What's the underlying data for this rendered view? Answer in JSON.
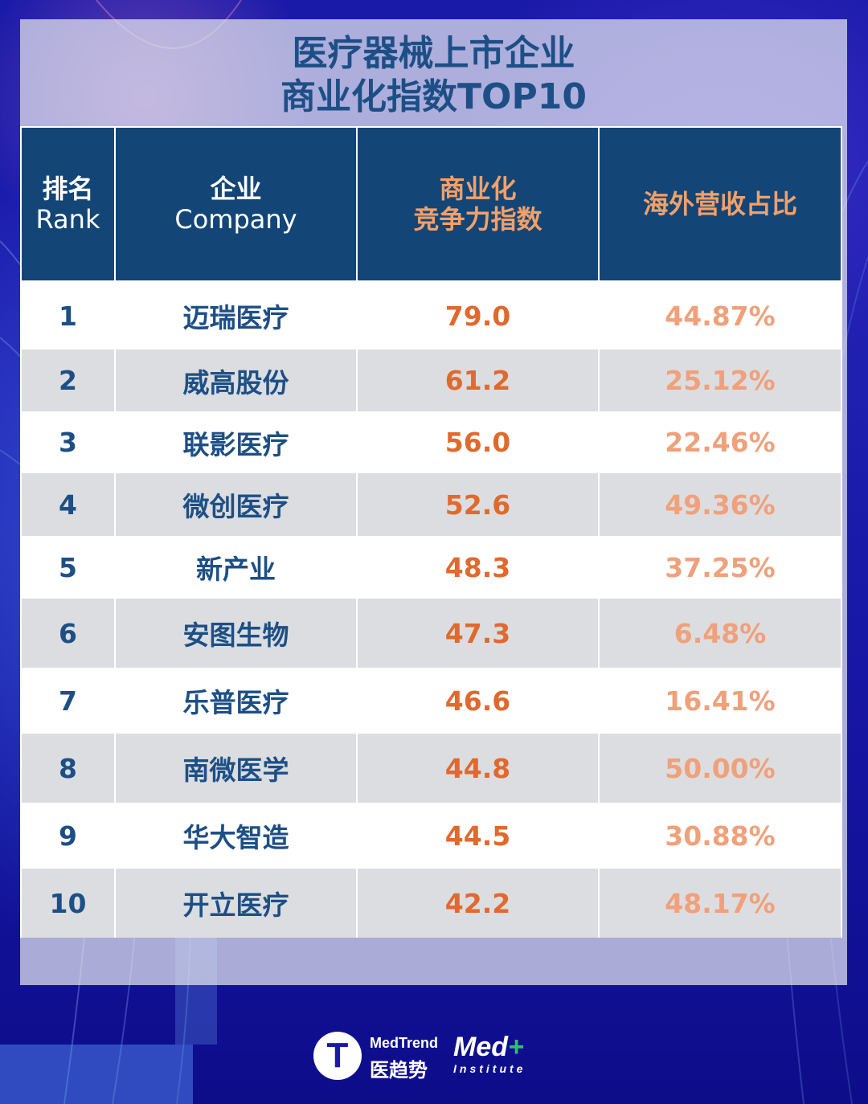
{
  "title": {
    "line1": "医疗器械上市企业",
    "line2": "商业化指数TOP10"
  },
  "table": {
    "headers": {
      "rank_cn": "排名",
      "rank_en": "Rank",
      "company_cn": "企业",
      "company_en": "Company",
      "index_line1": "商业化",
      "index_line2": "竞争力指数",
      "overseas": "海外营收占比"
    },
    "rows": [
      {
        "rank": "1",
        "company": "迈瑞医疗",
        "index": "79.0",
        "overseas": "44.87%"
      },
      {
        "rank": "2",
        "company": "威高股份",
        "index": "61.2",
        "overseas": "25.12%"
      },
      {
        "rank": "3",
        "company": "联影医疗",
        "index": "56.0",
        "overseas": "22.46%"
      },
      {
        "rank": "4",
        "company": "微创医疗",
        "index": "52.6",
        "overseas": "49.36%"
      },
      {
        "rank": "5",
        "company": "新产业",
        "index": "48.3",
        "overseas": "37.25%"
      },
      {
        "rank": "6",
        "company": "安图生物",
        "index": "47.3",
        "overseas": "6.48%"
      },
      {
        "rank": "7",
        "company": "乐普医疗",
        "index": "46.6",
        "overseas": "16.41%"
      },
      {
        "rank": "8",
        "company": "南微医学",
        "index": "44.8",
        "overseas": "50.00%"
      },
      {
        "rank": "9",
        "company": "华大智造",
        "index": "44.5",
        "overseas": "30.88%"
      },
      {
        "rank": "10",
        "company": "开立医疗",
        "index": "42.2",
        "overseas": "48.17%"
      }
    ]
  },
  "footer": {
    "logo_letter": "T",
    "brand_en": "MedTrend",
    "brand_cn": "医趋势",
    "med": "Med",
    "med_plus": "+",
    "institute": "Institute"
  },
  "colors": {
    "header_bg": "#134676",
    "title_text": "#1d4f86",
    "index_value": "#e0692d",
    "overseas_value": "#f0a07a",
    "row_alt": "#dcdde0",
    "background": "#1a1aa8"
  }
}
